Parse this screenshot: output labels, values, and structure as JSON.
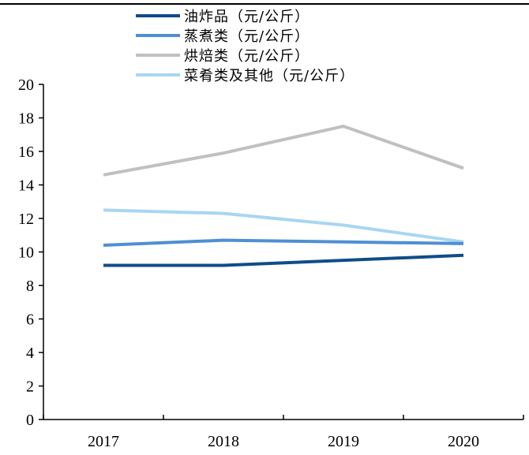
{
  "chart_data": {
    "type": "line",
    "categories": [
      "2017",
      "2018",
      "2019",
      "2020"
    ],
    "ylim": [
      0,
      20
    ],
    "y_ticks": [
      0,
      2,
      4,
      6,
      8,
      10,
      12,
      14,
      16,
      18,
      20
    ],
    "grid": false,
    "legend_position": "top",
    "series": [
      {
        "name": "油炸品（元/公斤）",
        "color": "#0f4c8a",
        "values": [
          9.2,
          9.2,
          9.5,
          9.8
        ]
      },
      {
        "name": "蒸煮类（元/公斤）",
        "color": "#4f8fd3",
        "values": [
          10.4,
          10.7,
          10.6,
          10.5
        ]
      },
      {
        "name": "烘焙类（元/公斤）",
        "color": "#c0c0c0",
        "values": [
          14.6,
          15.9,
          17.5,
          15.0
        ]
      },
      {
        "name": "菜肴类及其他（元/公斤）",
        "color": "#a8d6f2",
        "values": [
          12.5,
          12.3,
          11.6,
          10.6
        ]
      }
    ]
  }
}
